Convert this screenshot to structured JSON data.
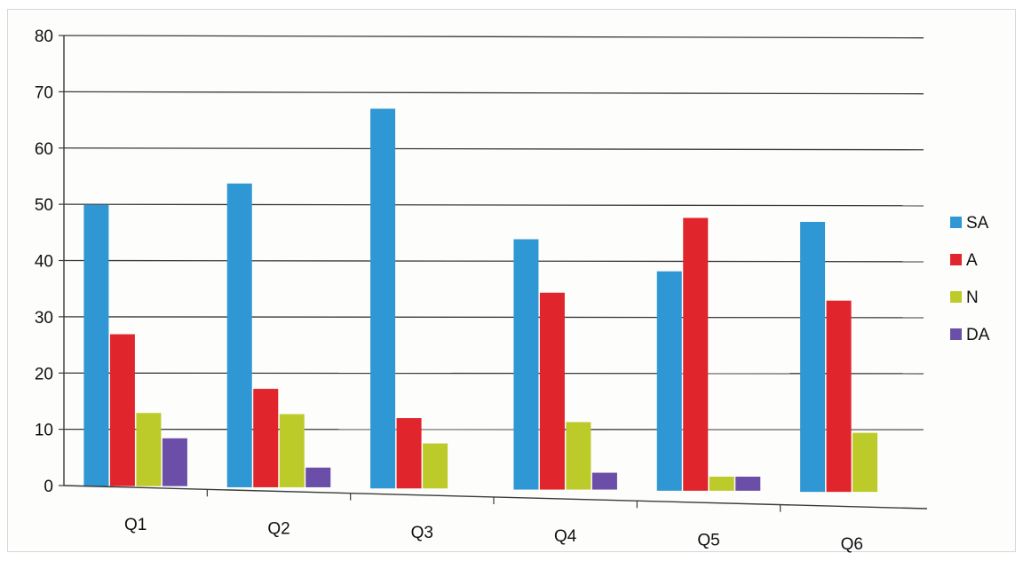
{
  "chart_data": {
    "type": "bar",
    "title": "",
    "xlabel": "",
    "ylabel": "",
    "categories": [
      "Q1",
      "Q2",
      "Q3",
      "Q4",
      "Q5",
      "Q6"
    ],
    "ylim": [
      0,
      80
    ],
    "yticks": [
      0,
      10,
      20,
      30,
      40,
      50,
      60,
      70,
      80
    ],
    "grid": true,
    "legend_position": "right",
    "series": [
      {
        "name": "SA",
        "color": "#2f97d3",
        "values": [
          50,
          54,
          67.5,
          44.5,
          39,
          48
        ]
      },
      {
        "name": "A",
        "color": "#e0262c",
        "values": [
          27,
          17.5,
          12.5,
          35,
          48.5,
          34
        ]
      },
      {
        "name": "N",
        "color": "#bccb2a",
        "values": [
          13,
          13,
          8,
          12,
          2.5,
          10.5
        ]
      },
      {
        "name": "DA",
        "color": "#6a4ea8",
        "values": [
          8.5,
          3.5,
          0,
          3,
          2.5,
          0
        ]
      }
    ]
  }
}
